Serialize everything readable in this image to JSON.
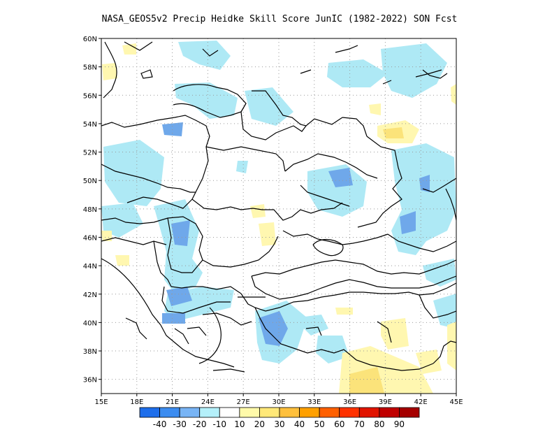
{
  "title": "NASA_GEOS5v2 Precip Heidke Skill Score JunIC (1982-2022) SON Fcst",
  "map": {
    "lon_range": [
      15,
      45
    ],
    "lat_range": [
      35,
      60
    ],
    "grid": "dotted",
    "lon_ticks": [
      "15E",
      "18E",
      "21E",
      "24E",
      "27E",
      "30E",
      "33E",
      "36E",
      "39E",
      "42E",
      "45E"
    ],
    "lat_ticks": [
      "36N",
      "38N",
      "40N",
      "42N",
      "44N",
      "46N",
      "48N",
      "50N",
      "52N",
      "54N",
      "56N",
      "58N",
      "60N"
    ]
  },
  "colorbar": {
    "colors": [
      "#1e6eeb",
      "#3c8cf0",
      "#78b4f5",
      "#b4f0fa",
      "#ffffff",
      "#fffaaa",
      "#ffe878",
      "#ffc03c",
      "#ffa000",
      "#ff6000",
      "#ff3200",
      "#e11400",
      "#c00000",
      "#a50000"
    ],
    "labels": [
      "-40",
      "-30",
      "-20",
      "-10",
      "10",
      "20",
      "30",
      "40",
      "50",
      "60",
      "70",
      "80",
      "90"
    ]
  },
  "fields": {
    "lightblue": "#aee9f5",
    "blue": "#6fa8ea",
    "lightyellow": "#fff7b0",
    "yellow": "#fbe37a"
  }
}
